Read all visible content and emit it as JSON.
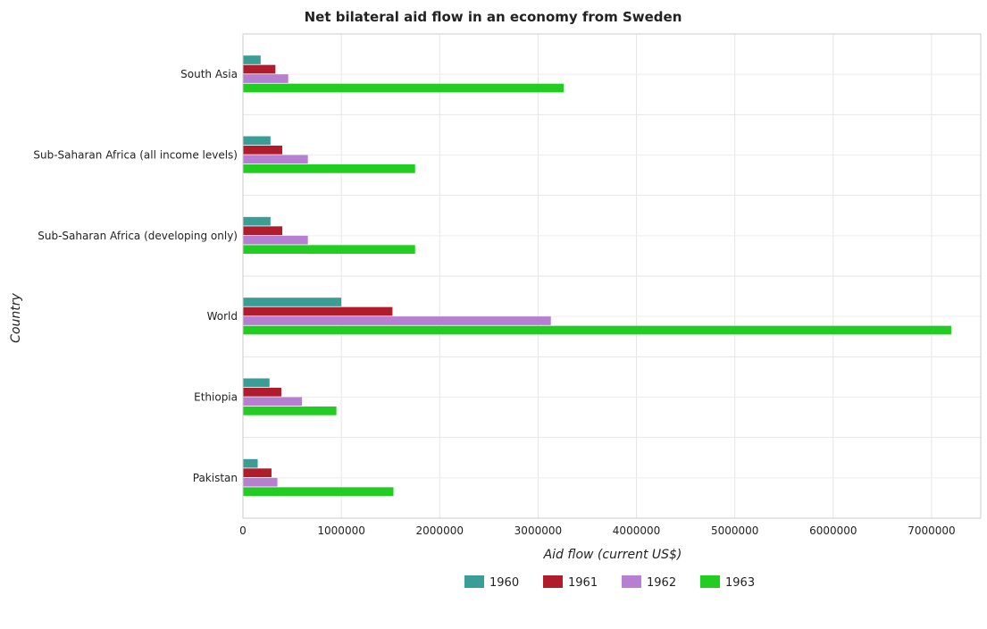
{
  "chart_data": {
    "type": "bar",
    "orientation": "horizontal",
    "title": "Net bilateral aid flow in an economy from Sweden",
    "xlabel": "Aid flow (current US$)",
    "ylabel": "Country",
    "xlim": [
      0,
      7500000
    ],
    "xticks": [
      0,
      1000000,
      2000000,
      3000000,
      4000000,
      5000000,
      6000000,
      7000000
    ],
    "xtick_labels": [
      "0",
      "1000000",
      "2000000",
      "3000000",
      "4000000",
      "5000000",
      "6000000",
      "7000000"
    ],
    "grid": true,
    "legend_position": "bottom",
    "categories": [
      "South Asia",
      "Sub-Saharan Africa (all income levels)",
      "Sub-Saharan Africa (developing only)",
      "World",
      "Ethiopia",
      "Pakistan"
    ],
    "series": [
      {
        "name": "1960",
        "color": "#3a9e96",
        "values": [
          180000,
          280000,
          280000,
          1000000,
          270000,
          150000
        ]
      },
      {
        "name": "1961",
        "color": "#b01c2c",
        "values": [
          330000,
          400000,
          400000,
          1520000,
          390000,
          290000
        ]
      },
      {
        "name": "1962",
        "color": "#b67fd1",
        "values": [
          460000,
          660000,
          660000,
          3130000,
          600000,
          350000
        ]
      },
      {
        "name": "1963",
        "color": "#22cd22",
        "values": [
          3260000,
          1750000,
          1750000,
          7200000,
          950000,
          1530000
        ]
      }
    ]
  }
}
